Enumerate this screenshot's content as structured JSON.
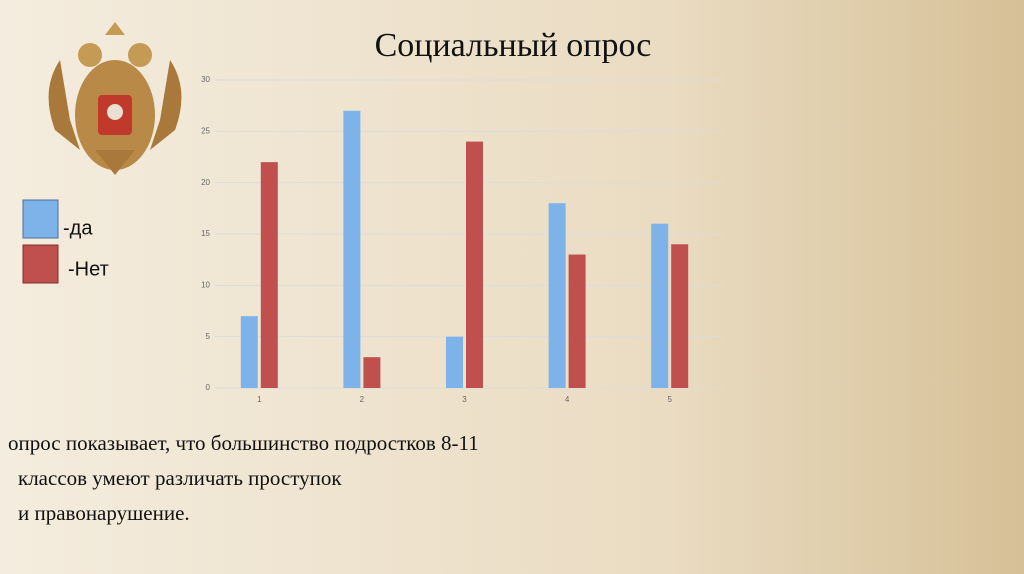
{
  "chart_data": {
    "type": "bar",
    "title": "Социальный опрос",
    "categories": [
      "1",
      "2",
      "3",
      "4",
      "5"
    ],
    "series": [
      {
        "name": "-да",
        "color": "#7eb3ea",
        "values": [
          7,
          27,
          5,
          18,
          16
        ]
      },
      {
        "name": "-Нет",
        "color": "#c0504d",
        "values": [
          22,
          3,
          24,
          13,
          14
        ]
      }
    ],
    "ylim": [
      0,
      30
    ],
    "yticks": [
      0,
      5,
      10,
      15,
      20,
      25,
      30
    ],
    "grid": true,
    "annotation": [
      "опрос показывает, что большинство подростков 8-11",
      "классов умеют различать проступок",
      "и правонарушение."
    ]
  }
}
